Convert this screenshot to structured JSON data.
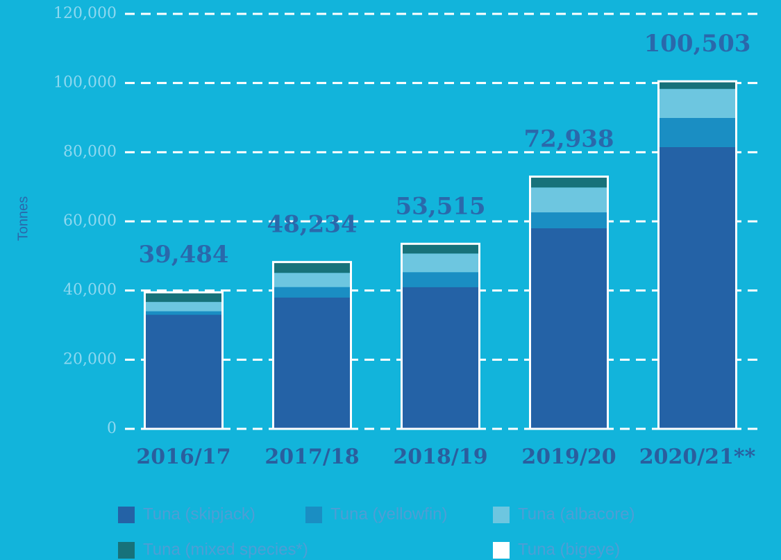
{
  "chart_data": {
    "type": "stacked_bar",
    "y_label": "Tonnes",
    "categories": [
      "2016/17",
      "2017/18",
      "2018/19",
      "2019/20",
      "2020/21**"
    ],
    "series": [
      {
        "name": "Tuna (skipjack)",
        "color": "#2462a6",
        "values": [
          33000,
          38000,
          41000,
          58000,
          81500
        ]
      },
      {
        "name": "Tuna (yellowfin)",
        "color": "#1a8ec3",
        "values": [
          1000,
          3000,
          4300,
          4600,
          8400
        ]
      },
      {
        "name": "Tuna (albacore)",
        "color": "#6dc6e0",
        "values": [
          2700,
          4100,
          5400,
          7200,
          8400
        ]
      },
      {
        "name": "Tuna (mixed species*)",
        "color": "#17727a",
        "values": [
          2600,
          3000,
          2600,
          2900,
          2000
        ]
      },
      {
        "name": "Tuna (bigeye)",
        "color": "#ffffff",
        "values": [
          184,
          134,
          215,
          238,
          203
        ]
      }
    ],
    "totals": [
      39484,
      48234,
      53515,
      72938,
      100503
    ],
    "total_labels": [
      "39,484",
      "48,234",
      "53,515",
      "72,938",
      "100,503"
    ],
    "ylim": [
      0,
      120000
    ],
    "yticks": [
      0,
      {
        "value": 20000,
        "label": "20,000"
      },
      {
        "value": 40000,
        "label": "40,000"
      },
      {
        "value": 60000,
        "label": "60,000"
      },
      {
        "value": 80000,
        "label": "80,000"
      },
      {
        "value": 100000,
        "label": "100,000"
      },
      {
        "value": 120000,
        "label": "120,000"
      }
    ],
    "grid": true
  }
}
